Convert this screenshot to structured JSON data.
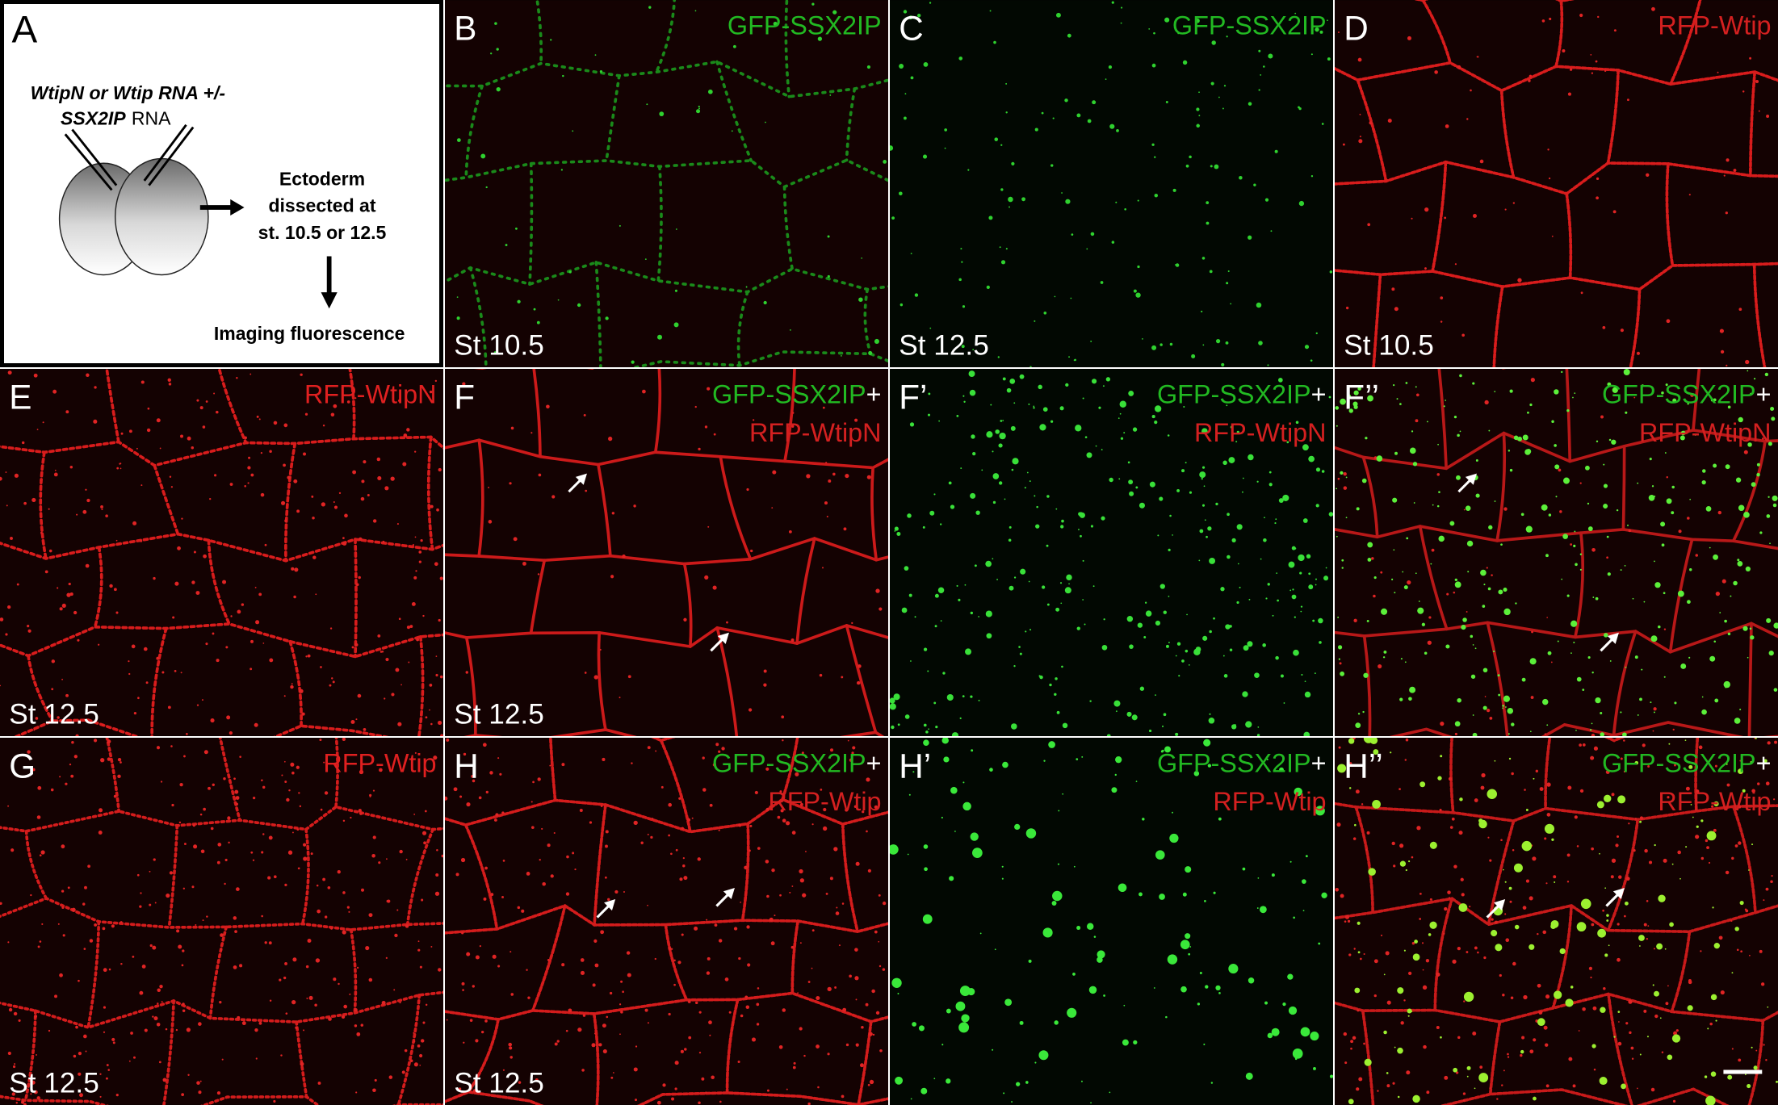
{
  "panel_a": {
    "label": "A",
    "injection_line": "WtipN or Wtip RNA +/-",
    "injection_gene": "SSX2IP",
    "injection_rna": "RNA",
    "steps": [
      "Ectoderm",
      "dissected at",
      "st. 10.5 or 12.5"
    ],
    "result": "Imaging fluorescence"
  },
  "panels": [
    {
      "label": "B",
      "lines": [
        [
          {
            "text": "GFP-SSX2IP",
            "color": "#22b922"
          }
        ]
      ],
      "stage": "St 10.5"
    },
    {
      "label": "C",
      "lines": [
        [
          {
            "text": "GFP-SSX2IP",
            "color": "#22b922"
          }
        ]
      ],
      "stage": "St 12.5"
    },
    {
      "label": "D",
      "lines": [
        [
          {
            "text": "RFP-Wtip",
            "color": "#d42020"
          }
        ]
      ],
      "stage": "St 10.5"
    },
    {
      "label": "E",
      "lines": [
        [
          {
            "text": "RFP-WtipN",
            "color": "#e02020"
          }
        ]
      ],
      "stage": "St 12.5"
    },
    {
      "label": "F",
      "lines": [
        [
          {
            "text": "GFP-SSX2IP",
            "color": "#22b922"
          },
          {
            "text": "+",
            "color": "#ffffff"
          }
        ],
        [
          {
            "text": "RFP-WtipN",
            "color": "#d42020"
          }
        ]
      ],
      "stage": "St 12.5"
    },
    {
      "label": "F’",
      "lines": [
        [
          {
            "text": "GFP-SSX2IP",
            "color": "#22b922"
          },
          {
            "text": "+",
            "color": "#ffffff"
          }
        ],
        [
          {
            "text": "RFP-WtipN",
            "color": "#d42020"
          }
        ]
      ]
    },
    {
      "label": "F’’",
      "lines": [
        [
          {
            "text": "GFP-SSX2IP",
            "color": "#22b922"
          },
          {
            "text": "+",
            "color": "#ffffff"
          }
        ],
        [
          {
            "text": "RFP-WtipN",
            "color": "#d42020"
          }
        ]
      ]
    },
    {
      "label": "G",
      "lines": [
        [
          {
            "text": "RFP-Wtip",
            "color": "#e02020"
          }
        ]
      ],
      "stage": "St 12.5"
    },
    {
      "label": "H",
      "lines": [
        [
          {
            "text": "GFP-SSX2IP",
            "color": "#22b922"
          },
          {
            "text": "+",
            "color": "#ffffff"
          }
        ],
        [
          {
            "text": "RFP-Wtip",
            "color": "#d42020"
          }
        ]
      ],
      "stage": "St 12.5"
    },
    {
      "label": "H’",
      "lines": [
        [
          {
            "text": "GFP-SSX2IP",
            "color": "#22b922"
          },
          {
            "text": "+",
            "color": "#ffffff"
          }
        ],
        [
          {
            "text": "RFP-Wtip",
            "color": "#d42020"
          }
        ]
      ]
    },
    {
      "label": "H’’",
      "lines": [
        [
          {
            "text": "GFP-SSX2IP",
            "color": "#22b922"
          },
          {
            "text": "+",
            "color": "#ffffff"
          }
        ],
        [
          {
            "text": "RFP-Wtip",
            "color": "#d42020"
          }
        ]
      ]
    }
  ]
}
